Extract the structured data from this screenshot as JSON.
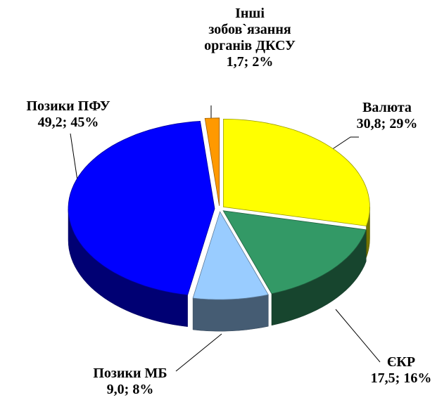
{
  "chart_data": {
    "type": "pie",
    "categories": [
      "Валюта",
      "ЄКР",
      "Позики МБ",
      "Позики ПФУ",
      "Інші зобов`язання органів ДКСУ"
    ],
    "values": [
      30.8,
      17.5,
      9.0,
      49.2,
      1.7
    ],
    "value_labels": [
      "30,8; 29%",
      "17,5; 16%",
      "9,0; 8%",
      "49,2; 45%",
      "1,7; 2%"
    ],
    "colors": [
      "#ffff00",
      "#339966",
      "#99ccff",
      "#0000ff",
      "#ff9900"
    ]
  }
}
